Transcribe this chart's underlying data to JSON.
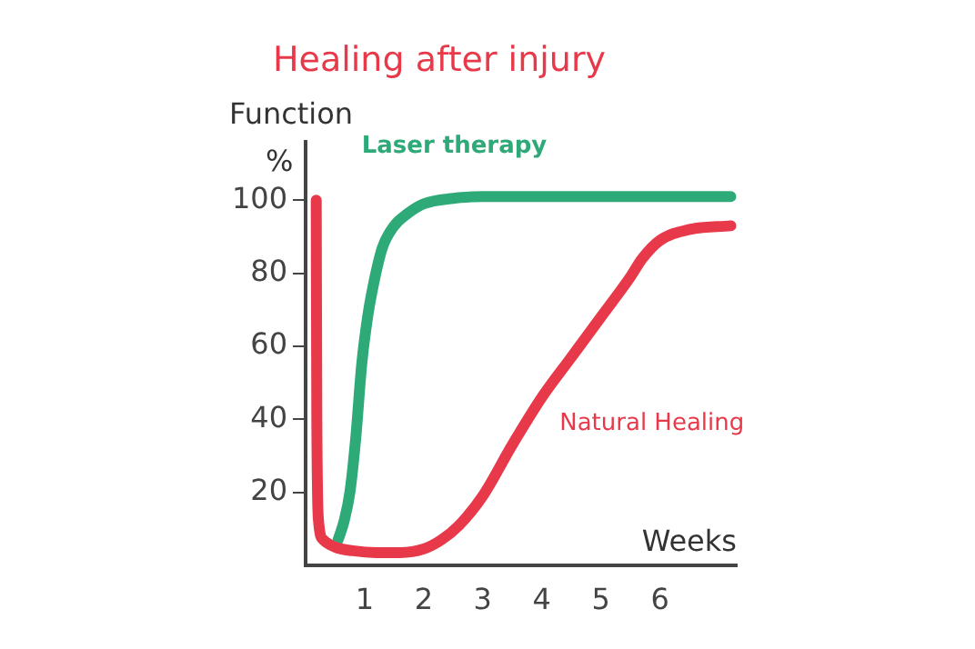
{
  "chart_data": {
    "type": "line",
    "title": "Healing after injury",
    "ylabel": "Function",
    "xlabel": "Weeks",
    "annotations": [
      "%"
    ],
    "xlim": [
      0,
      7.3
    ],
    "ylim": [
      0,
      116
    ],
    "xticks": [
      1,
      2,
      3,
      4,
      5,
      6
    ],
    "yticks": [
      20,
      40,
      60,
      80,
      100
    ],
    "grid": false,
    "legend": false,
    "marker": "none",
    "line_style": "solid",
    "series": [
      {
        "name": "Natural Healing",
        "color": "#e8394a",
        "x": [
          0.18,
          0.19,
          0.22,
          0.3,
          0.5,
          0.8,
          1.2,
          1.6,
          2,
          2.3,
          2.6,
          3,
          3.5,
          4,
          4.5,
          5,
          5.5,
          5.7,
          6,
          6.5,
          7.2
        ],
        "values": [
          100,
          40,
          12,
          7,
          5,
          4,
          3.5,
          3.5,
          4.5,
          7,
          11,
          19,
          33,
          46,
          57,
          68,
          79,
          84,
          89,
          92,
          93
        ]
      },
      {
        "name": "Laser therapy",
        "color": "#2eaa78",
        "x": [
          0.55,
          0.65,
          0.75,
          0.85,
          0.95,
          1.05,
          1.15,
          1.3,
          1.5,
          1.7,
          2,
          2.5,
          3,
          4,
          5,
          6,
          7.2
        ],
        "values": [
          7,
          12,
          20,
          35,
          55,
          68,
          77,
          87,
          93,
          96,
          99,
          100.5,
          101,
          101,
          101,
          101,
          101
        ]
      }
    ]
  }
}
